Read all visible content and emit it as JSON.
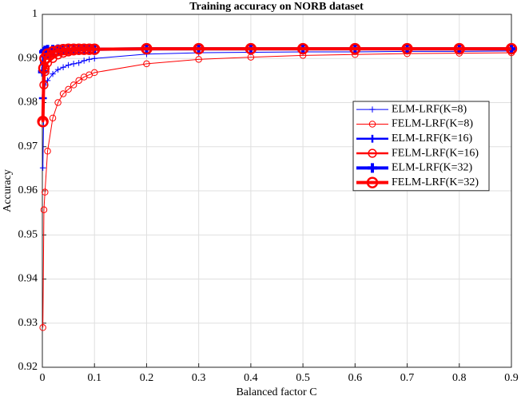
{
  "chart_data": {
    "type": "line",
    "title": "Training accuracy on NORB dataset",
    "x_label": "Balanced factor C",
    "y_label": "Accuracy",
    "x": [
      0.001,
      0.003,
      0.005,
      0.01,
      0.02,
      0.03,
      0.04,
      0.05,
      0.06,
      0.07,
      0.08,
      0.09,
      0.1,
      0.2,
      0.3,
      0.4,
      0.5,
      0.6,
      0.7,
      0.8,
      0.9
    ],
    "series": [
      {
        "name": "ELM-LRF(K=8)",
        "color": "#0000ff",
        "marker": "+",
        "linewidth": 1,
        "values": [
          0.9652,
          0.981,
          0.984,
          0.985,
          0.9865,
          0.9875,
          0.988,
          0.9885,
          0.9888,
          0.989,
          0.9895,
          0.9898,
          0.99,
          0.991,
          0.9913,
          0.9914,
          0.9915,
          0.9915,
          0.9916,
          0.9916,
          0.9917
        ]
      },
      {
        "name": "FELM-LRF(K=8)",
        "color": "#ff0000",
        "marker": "o",
        "linewidth": 1,
        "values": [
          0.929,
          0.9557,
          0.9597,
          0.969,
          0.9765,
          0.98,
          0.982,
          0.983,
          0.984,
          0.985,
          0.9858,
          0.9863,
          0.9868,
          0.9888,
          0.9898,
          0.9903,
          0.9907,
          0.9909,
          0.9911,
          0.9912,
          0.9913
        ]
      },
      {
        "name": "ELM-LRF(K=16)",
        "color": "#0000ff",
        "marker": "+",
        "linewidth": 2.5,
        "values": [
          0.981,
          0.989,
          0.9905,
          0.991,
          0.9915,
          0.9917,
          0.9918,
          0.9919,
          0.992,
          0.992,
          0.992,
          0.992,
          0.992,
          0.9921,
          0.9921,
          0.9921,
          0.9921,
          0.9921,
          0.9921,
          0.9921,
          0.9921
        ]
      },
      {
        "name": "FELM-LRF(K=16)",
        "color": "#ff0000",
        "marker": "o",
        "linewidth": 2.5,
        "values": [
          0.9755,
          0.984,
          0.987,
          0.989,
          0.99,
          0.9908,
          0.9912,
          0.9915,
          0.9917,
          0.9918,
          0.9919,
          0.992,
          0.992,
          0.9921,
          0.9921,
          0.9921,
          0.9921,
          0.9921,
          0.9921,
          0.9921,
          0.9921
        ]
      },
      {
        "name": "ELM-LRF(K=32)",
        "color": "#0000ff",
        "marker": "+",
        "linewidth": 4,
        "values": [
          0.987,
          0.9915,
          0.9918,
          0.992,
          0.992,
          0.9921,
          0.9921,
          0.9921,
          0.9921,
          0.9921,
          0.9921,
          0.9921,
          0.9921,
          0.9922,
          0.9922,
          0.9922,
          0.9922,
          0.9922,
          0.9922,
          0.9922,
          0.9922
        ]
      },
      {
        "name": "FELM-LRF(K=32)",
        "color": "#ff0000",
        "marker": "o",
        "linewidth": 4,
        "values": [
          0.9757,
          0.9878,
          0.99,
          0.991,
          0.9915,
          0.9918,
          0.992,
          0.9921,
          0.9921,
          0.9921,
          0.9921,
          0.9921,
          0.9921,
          0.9922,
          0.9922,
          0.9922,
          0.9922,
          0.9922,
          0.9922,
          0.9922,
          0.9922
        ]
      }
    ],
    "xlim": [
      0,
      0.9
    ],
    "xticks": [
      0,
      0.1,
      0.2,
      0.3,
      0.4,
      0.5,
      0.6,
      0.7,
      0.8,
      0.9
    ],
    "ylim": [
      0.92,
      1
    ],
    "yticks": [
      0.92,
      0.93,
      0.94,
      0.95,
      0.96,
      0.97,
      0.98,
      0.99,
      1
    ],
    "grid": true,
    "legend": "right"
  }
}
